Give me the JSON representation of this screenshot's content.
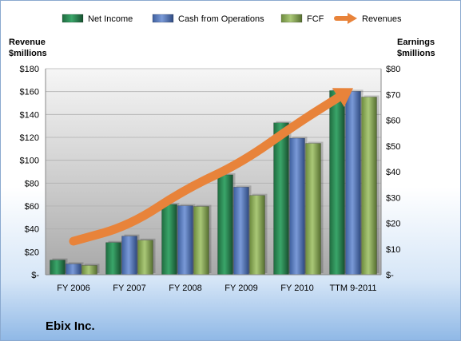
{
  "chart_data": {
    "type": "bar",
    "title": "Ebix Inc.",
    "categories": [
      "FY 2006",
      "FY 2007",
      "FY 2008",
      "FY 2009",
      "FY 2010",
      "TTM 9-2011"
    ],
    "y_left_label": [
      "Revenue",
      "$millions"
    ],
    "y_right_label": [
      "Earnings",
      "$millions"
    ],
    "y_left_range": [
      0,
      180
    ],
    "y_right_range": [
      0,
      80
    ],
    "y_left_ticks": [
      "$-",
      "$20",
      "$40",
      "$60",
      "$80",
      "$100",
      "$120",
      "$140",
      "$160",
      "$180"
    ],
    "y_right_ticks": [
      "$-",
      "$10",
      "$20",
      "$30",
      "$40",
      "$50",
      "$60",
      "$70",
      "$80"
    ],
    "grid": true,
    "legend_position": "top",
    "series": [
      {
        "name": "Net Income",
        "type": "bar",
        "axis": "right",
        "color": "#2e8b57",
        "values": [
          5.7,
          12.5,
          27.3,
          38.8,
          59.0,
          71.5
        ]
      },
      {
        "name": "Cash from Operations",
        "type": "bar",
        "axis": "right",
        "color": "#5b7fc7",
        "values": [
          4.2,
          15.0,
          26.8,
          34.0,
          53.0,
          71.2
        ]
      },
      {
        "name": "FCF",
        "type": "bar",
        "axis": "right",
        "color": "#8fb15a",
        "values": [
          3.6,
          13.4,
          26.5,
          30.8,
          51.0,
          69.0
        ]
      },
      {
        "name": "Revenues",
        "type": "line",
        "axis": "left",
        "color": "#e8833a",
        "values": [
          29.3,
          42.8,
          74.8,
          97.7,
          132.2,
          163.0
        ]
      }
    ]
  }
}
